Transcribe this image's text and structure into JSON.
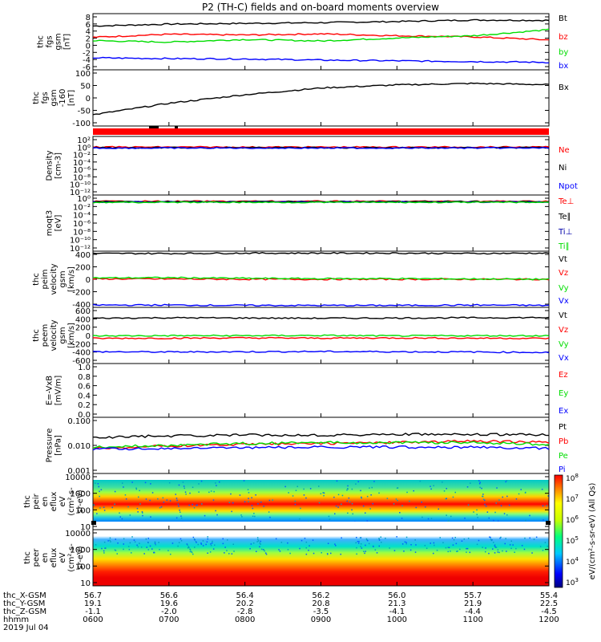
{
  "title": "P2 (TH-C) fields and on-board moments overview",
  "footer": {
    "rows": [
      {
        "label": "thc_X-GSM",
        "values": [
          "56.7",
          "56.6",
          "56.4",
          "56.2",
          "56.0",
          "55.7",
          "55.4"
        ]
      },
      {
        "label": "thc_Y-GSM",
        "values": [
          "19.1",
          "19.6",
          "20.2",
          "20.8",
          "21.3",
          "21.9",
          "22.5"
        ]
      },
      {
        "label": "thc_Z-GSM",
        "values": [
          "-1.1",
          "-2.0",
          "-2.8",
          "-3.5",
          "-4.1",
          "-4.4",
          "-4.5"
        ]
      },
      {
        "label": "hhmm",
        "values": [
          "0600",
          "0700",
          "0800",
          "0900",
          "1000",
          "1100",
          "1200"
        ]
      }
    ],
    "date": "2019 Jul 04"
  },
  "colorbar": {
    "label": "eV/(cm²-s-sr-eV) (All Qs)",
    "exponents": [
      "3",
      "4",
      "5",
      "6",
      "7",
      "8"
    ]
  },
  "chart_data": [
    {
      "panel": "fgs",
      "type": "line",
      "ylabel": [
        "thc",
        "fgs",
        "gsm",
        "[nT]"
      ],
      "yticks": [
        "8",
        "6",
        "4",
        "2",
        "0",
        "-2",
        "-4",
        "-6"
      ],
      "ylim": [
        -6.5,
        8.5
      ],
      "x": [
        "0600",
        "0700",
        "0800",
        "0900",
        "1000",
        "1100",
        "1200"
      ],
      "series": [
        {
          "name": "Bt",
          "color": "#000000",
          "values": [
            5.2,
            5.7,
            5.9,
            6.1,
            6.4,
            6.8,
            6.7
          ]
        },
        {
          "name": "bz",
          "color": "#ff0000",
          "values": [
            2.2,
            3.0,
            2.8,
            3.1,
            2.6,
            2.3,
            1.5
          ]
        },
        {
          "name": "by",
          "color": "#00dd00",
          "values": [
            1.3,
            0.9,
            1.6,
            1.2,
            2.0,
            2.6,
            4.2
          ]
        },
        {
          "name": "bx",
          "color": "#0000ff",
          "values": [
            -3.3,
            -3.5,
            -3.6,
            -3.9,
            -4.1,
            -4.3,
            -4.5
          ]
        }
      ]
    },
    {
      "panel": "fgs-160",
      "type": "line",
      "ylabel": [
        "thc",
        "fgs",
        "gsm",
        "-160",
        "[nT]"
      ],
      "yticks": [
        "100",
        "50",
        "0",
        "-50",
        "-100"
      ],
      "ylim": [
        -125,
        110
      ],
      "x": [
        "0600",
        "0700",
        "0800",
        "0900",
        "1000",
        "1100",
        "1200"
      ],
      "series": [
        {
          "name": "Bx",
          "color": "#000000",
          "values": [
            -78,
            -30,
            6,
            34,
            47,
            53,
            48
          ]
        }
      ]
    },
    {
      "panel": "density",
      "type": "line",
      "scale": "log",
      "ylabel": [
        "Density",
        "[cm-3]"
      ],
      "yticks": [
        "10²",
        "10⁰",
        "10⁻²",
        "10⁻⁴",
        "10⁻⁶",
        "10⁻⁸",
        "10⁻¹⁰",
        "10⁻¹²"
      ],
      "ylim_exp": [
        -13,
        2.5
      ],
      "series": [
        {
          "name": "Ne",
          "color": "#ff0000",
          "value_exp": 0.3
        },
        {
          "name": "Ni",
          "color": "#000000",
          "value_exp": 0.1
        },
        {
          "name": "Npot",
          "color": "#0000ff",
          "value_exp": 0.0
        }
      ]
    },
    {
      "panel": "temperature",
      "type": "line",
      "scale": "log",
      "ylabel": [
        "moqt3",
        "[eV]"
      ],
      "yticks": [
        "10⁰",
        "10⁻²",
        "10⁻⁴",
        "10⁻⁶",
        "10⁻⁸",
        "10⁻¹⁰",
        "10⁻¹²"
      ],
      "ylim_exp": [
        -13,
        1.5
      ],
      "series": [
        {
          "name": "Te⊥",
          "color": "#ff0000",
          "value_exp": 0.6
        },
        {
          "name": "Te∥",
          "color": "#000000",
          "value_exp": 0.5
        },
        {
          "name": "Ti⊥",
          "color": "#0000aa",
          "value_exp": 0.4
        },
        {
          "name": "Ti∥",
          "color": "#00dd00",
          "value_exp": 0.3
        }
      ]
    },
    {
      "panel": "peim",
      "type": "line",
      "ylabel": [
        "thc",
        "peim",
        "velocity",
        "gsm",
        "[km/s]"
      ],
      "yticks": [
        "400",
        "200",
        "0",
        "-200",
        "-400"
      ],
      "ylim": [
        -430,
        430
      ],
      "series": [
        {
          "name": "Vt",
          "color": "#000000",
          "values": [
            395,
            395,
            400,
            400,
            400,
            395,
            400
          ]
        },
        {
          "name": "Vz",
          "color": "#ff0000",
          "values": [
            5,
            5,
            0,
            0,
            0,
            0,
            0
          ]
        },
        {
          "name": "Vy",
          "color": "#00dd00",
          "values": [
            20,
            25,
            15,
            10,
            10,
            5,
            0
          ]
        },
        {
          "name": "Vx",
          "color": "#0000ff",
          "values": [
            -395,
            -395,
            -400,
            -400,
            -400,
            -395,
            -400
          ]
        }
      ]
    },
    {
      "panel": "peem",
      "type": "line",
      "ylabel": [
        "thc",
        "peem",
        "velocity",
        "gsm",
        "[km/s]"
      ],
      "yticks": [
        "600",
        "400",
        "200",
        "0",
        "-200",
        "-400",
        "-600"
      ],
      "ylim": [
        -620,
        620
      ],
      "series": [
        {
          "name": "Vt",
          "color": "#000000",
          "values": [
            380,
            390,
            385,
            380,
            385,
            390,
            395
          ]
        },
        {
          "name": "Vz",
          "color": "#ff0000",
          "values": [
            -65,
            -60,
            -55,
            -60,
            -55,
            -60,
            -65
          ]
        },
        {
          "name": "Vy",
          "color": "#00dd00",
          "values": [
            -10,
            -5,
            -5,
            0,
            -10,
            -5,
            -5
          ]
        },
        {
          "name": "Vx",
          "color": "#0000ff",
          "values": [
            -360,
            -365,
            -360,
            -355,
            -360,
            -365,
            -375
          ]
        }
      ]
    },
    {
      "panel": "exb",
      "type": "line",
      "ylabel": [
        "E=-VxB",
        "[mV/m]"
      ],
      "yticks": [
        "1.0",
        "0.8",
        "0.6",
        "0.4",
        "0.2",
        "0.0"
      ],
      "ylim": [
        0,
        1.05
      ],
      "series": [
        {
          "name": "Ez",
          "color": "#ff0000",
          "values": []
        },
        {
          "name": "Ey",
          "color": "#00dd00",
          "values": []
        },
        {
          "name": "Ex",
          "color": "#0000ff",
          "values": []
        }
      ]
    },
    {
      "panel": "pressure",
      "type": "line",
      "scale": "log",
      "ylabel": [
        "Pressure",
        "[nPa]"
      ],
      "yticks": [
        "0.100",
        "0.010",
        "0.001"
      ],
      "ylim_exp": [
        -3,
        -1
      ],
      "series": [
        {
          "name": "Pt",
          "color": "#000000",
          "values": [
            0.021,
            0.024,
            0.026,
            0.026,
            0.028,
            0.027,
            0.027
          ]
        },
        {
          "name": "Pb",
          "color": "#ff0000",
          "values": [
            0.0075,
            0.0095,
            0.011,
            0.012,
            0.013,
            0.015,
            0.013
          ]
        },
        {
          "name": "Pe",
          "color": "#00dd00",
          "values": [
            0.0085,
            0.01,
            0.012,
            0.013,
            0.013,
            0.013,
            0.011
          ]
        },
        {
          "name": "Pi",
          "color": "#0000ff",
          "values": [
            0.007,
            0.0075,
            0.008,
            0.0085,
            0.0085,
            0.0085,
            0.0075
          ]
        }
      ]
    },
    {
      "panel": "peir",
      "type": "heatmap",
      "ylabel": [
        "thc",
        "peir",
        "en",
        "eflux",
        "eV",
        "(cm²-s-",
        "sr-eV)"
      ],
      "yticks": [
        "10000",
        "1000",
        "100",
        "10"
      ],
      "ylim_exp": [
        0.8,
        4.1
      ]
    },
    {
      "panel": "peer",
      "type": "heatmap",
      "ylabel": [
        "thc",
        "peer",
        "en",
        "eflux",
        "eV",
        "(cm²-s-",
        "sr-eV)"
      ],
      "yticks": [
        "10000",
        "1000",
        "100",
        "10"
      ],
      "ylim_exp": [
        0.7,
        4.1
      ]
    }
  ]
}
